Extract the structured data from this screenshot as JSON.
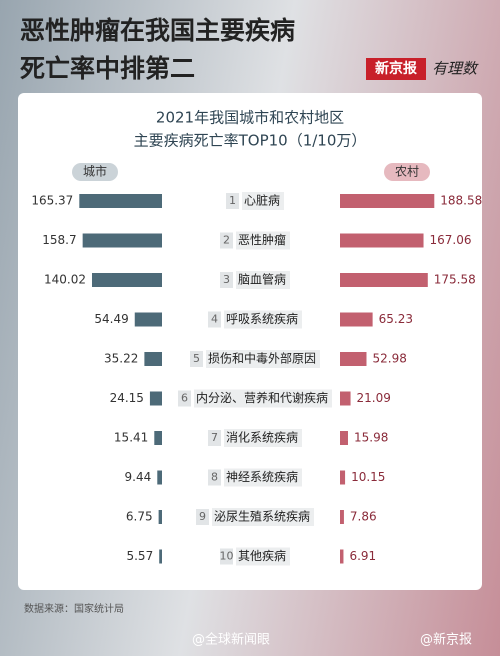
{
  "header": {
    "title_lines": [
      "恶性肿瘤在我国主要疾病",
      "死亡率中排第二"
    ],
    "logo": "新京报",
    "logo_tag": "有理数"
  },
  "chart_data": {
    "type": "bar",
    "title": "2021年我国城市和农村地区",
    "subtitle": "主要疾病死亡率TOP10（1/10万）",
    "ranks": [
      1,
      2,
      3,
      4,
      5,
      6,
      7,
      8,
      9,
      10
    ],
    "categories": [
      "心脏病",
      "恶性肿瘤",
      "脑血管病",
      "呼吸系统疾病",
      "损伤和中毒外部原因",
      "内分泌、营养和代谢疾病",
      "消化系统疾病",
      "神经系统疾病",
      "泌尿生殖系统疾病",
      "其他疾病"
    ],
    "series": [
      {
        "name": "城市",
        "color": "#4d6a78",
        "values": [
          165.37,
          158.7,
          140.02,
          54.49,
          35.22,
          24.15,
          15.41,
          9.44,
          6.75,
          5.57
        ]
      },
      {
        "name": "农村",
        "color": "#c2606f",
        "values": [
          188.58,
          167.06,
          175.58,
          65.23,
          52.98,
          21.09,
          15.98,
          10.15,
          7.86,
          6.91
        ]
      }
    ]
  },
  "source": "数据来源：国家统计局",
  "watermarks": [
    "@全球新闻眼",
    "@新京报"
  ]
}
